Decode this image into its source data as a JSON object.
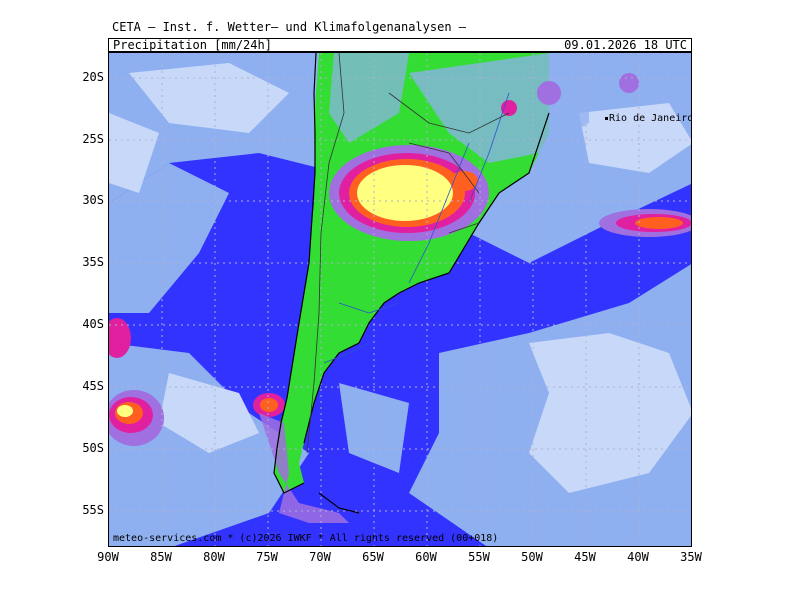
{
  "header": {
    "title": "CETA – Inst. f. Wetter– und Klimafolgenanalysen –"
  },
  "info_bar": {
    "field": "Precipitation [mm/24h]",
    "valid_time": "09.01.2026 18 UTC"
  },
  "map": {
    "city_label": "Rio de Janeiro",
    "credit": "meteo-services.com * (c)2026 IWKF * All rights reserved (00+018)",
    "lat_ticks": [
      "20S",
      "25S",
      "30S",
      "35S",
      "40S",
      "45S",
      "50S",
      "55S"
    ],
    "lon_ticks": [
      "90W",
      "85W",
      "80W",
      "75W",
      "70W",
      "65W",
      "60W",
      "55W",
      "50W",
      "45W",
      "40W",
      "35W"
    ],
    "colors": {
      "ocean_dry": "#3333ff",
      "land_dry": "#33dd33",
      "light_precip": "#8fb0f0",
      "lighter_precip": "#c8d8f8",
      "moderate_precip": "#a070e0",
      "heavy_precip": "#e020a0",
      "very_heavy_precip": "#ff6020",
      "extreme_precip": "#ffff80"
    }
  }
}
